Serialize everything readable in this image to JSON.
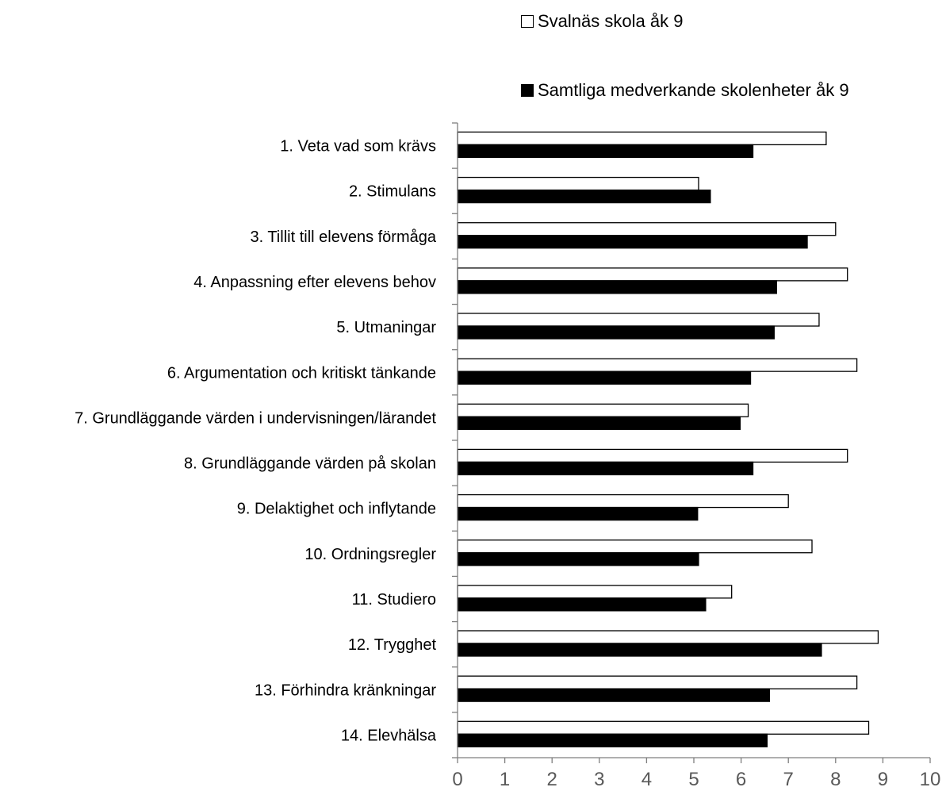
{
  "chart_data": {
    "type": "bar",
    "orientation": "horizontal",
    "categories": [
      "1. Veta vad som krävs",
      "2. Stimulans",
      "3. Tillit till elevens förmåga",
      "4. Anpassning efter elevens behov",
      "5. Utmaningar",
      "6. Argumentation och kritiskt tänkande",
      "7. Grundläggande värden i undervisningen/lärandet",
      "8. Grundläggande värden på skolan",
      "9. Delaktighet och inflytande",
      "10. Ordningsregler",
      "11. Studiero",
      "12. Trygghet",
      "13. Förhindra kränkningar",
      "14. Elevhälsa"
    ],
    "series": [
      {
        "name": "Svalnäs skola åk 9",
        "color": "#ffffff",
        "values": [
          7.8,
          5.1,
          8.0,
          8.25,
          7.65,
          8.45,
          6.15,
          8.25,
          7.0,
          7.5,
          5.8,
          8.9,
          8.45,
          8.7
        ]
      },
      {
        "name": "Samtliga medverkande skolenheter åk 9",
        "color": "#000000",
        "values": [
          6.25,
          5.35,
          7.4,
          6.75,
          6.7,
          6.2,
          5.98,
          6.25,
          5.08,
          5.1,
          5.25,
          7.7,
          6.6,
          6.55
        ]
      }
    ],
    "xlim": [
      0,
      10
    ],
    "xticks": [
      "0",
      "1",
      "2",
      "3",
      "4",
      "5",
      "6",
      "7",
      "8",
      "9",
      "10"
    ],
    "legend_position": "top-right",
    "grid": false
  }
}
